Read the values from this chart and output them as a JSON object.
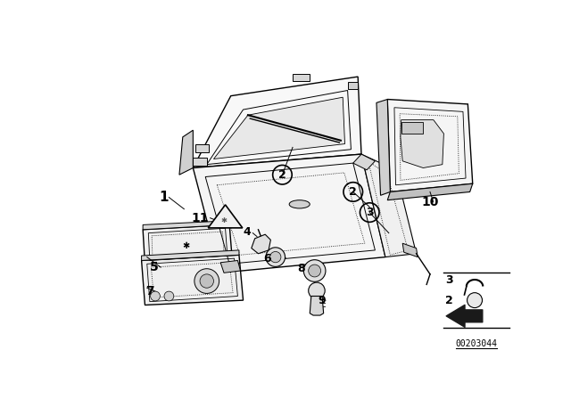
{
  "bg_color": "#ffffff",
  "image_number": "00203044",
  "fig_width": 6.4,
  "fig_height": 4.48,
  "dpi": 100,
  "lc": "#000000",
  "gray1": "#e8e8e8",
  "gray2": "#d0d0d0",
  "gray3": "#b8b8b8",
  "gray_dot": "#c0c0c0"
}
